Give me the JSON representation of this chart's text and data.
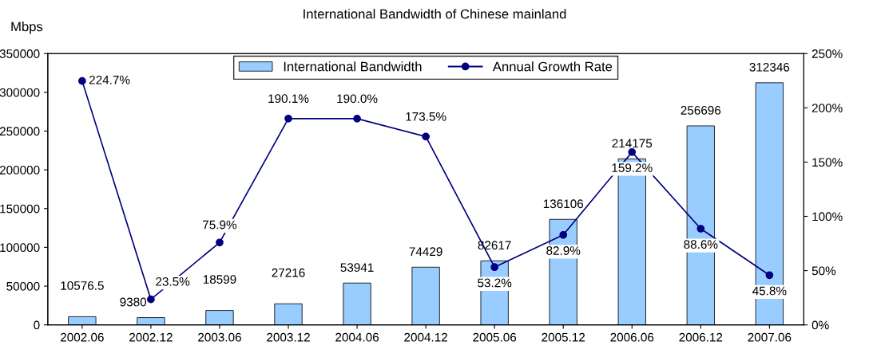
{
  "chart_data": {
    "type": "bar",
    "title": "International Bandwidth of Chinese mainland",
    "ylabel": "Mbps",
    "categories": [
      "2002.06",
      "2002.12",
      "2003.06",
      "2003.12",
      "2004.06",
      "2004.12",
      "2005.06",
      "2005.12",
      "2006.06",
      "2006.12",
      "2007.06"
    ],
    "series": [
      {
        "name": "International Bandwidth",
        "color": "#99ccff",
        "values": [
          10576.5,
          9380,
          18599,
          27216,
          53941,
          74429,
          82617,
          136106,
          214175,
          256696,
          312346
        ],
        "value_labels": [
          "10576.5",
          "9380",
          "18599",
          "27216",
          "53941",
          "74429",
          "82617",
          "136106",
          "214175",
          "256696",
          "312346"
        ]
      },
      {
        "name": "Annual Growth Rate",
        "type": "line",
        "axis": "y2",
        "color": "#000080",
        "marker": "circle",
        "values": [
          224.7,
          23.5,
          75.9,
          190.1,
          190.0,
          173.5,
          53.2,
          82.9,
          159.2,
          88.6,
          45.8
        ],
        "value_labels": [
          "224.7%",
          "23.5%",
          "75.9%",
          "190.1%",
          "190.0%",
          "173.5%",
          "53.2%",
          "82.9%",
          "159.2%",
          "88.6%",
          "45.8%"
        ]
      }
    ],
    "ylim": [
      0,
      350000
    ],
    "yticks": [
      0,
      50000,
      100000,
      150000,
      200000,
      250000,
      300000,
      350000
    ],
    "y2lim": [
      0,
      250
    ],
    "y2ticks": [
      {
        "value": 0,
        "label": "0%"
      },
      {
        "value": 50,
        "label": "50%"
      },
      {
        "value": 100,
        "label": "100%"
      },
      {
        "value": 150,
        "label": "150%"
      },
      {
        "value": 200,
        "label": "200%"
      },
      {
        "value": 250,
        "label": "250%"
      }
    ],
    "grid": false,
    "legend": "top"
  }
}
